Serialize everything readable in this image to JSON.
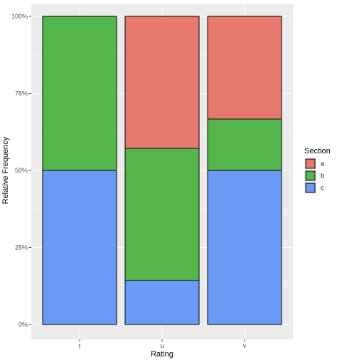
{
  "chart_data": {
    "type": "bar",
    "stacked": true,
    "categories": [
      "t",
      "u",
      "v"
    ],
    "series": [
      {
        "name": "a",
        "color": "#E8796E",
        "values": [
          0,
          0.4286,
          0.3333
        ]
      },
      {
        "name": "b",
        "color": "#55B64E",
        "values": [
          0.5,
          0.4286,
          0.1667
        ]
      },
      {
        "name": "c",
        "color": "#6A9AF5",
        "values": [
          0.5,
          0.1429,
          0.5
        ]
      }
    ],
    "xlabel": "Rating",
    "ylabel": "Relative Frequency",
    "ylim": [
      0,
      1
    ],
    "yticks": [
      0,
      0.25,
      0.5,
      0.75,
      1
    ],
    "ytick_labels": [
      "0%",
      "25%",
      "50%",
      "75%",
      "100%"
    ],
    "grid": true,
    "legend": {
      "title": "Section",
      "position": "right",
      "entries": [
        "a",
        "b",
        "c"
      ]
    },
    "panel_background": "#EBEBEB",
    "grid_color": "#FFFFFF"
  }
}
